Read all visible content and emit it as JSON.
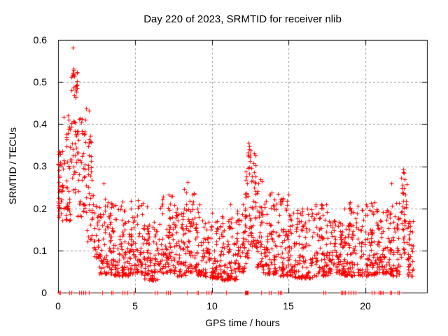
{
  "chart_data": {
    "type": "scatter",
    "title": "Day 220 of 2023, SRMTID for receiver nlib",
    "xlabel": "GPS time / hours",
    "ylabel": "SRMTID / TECUs",
    "xlim": [
      0,
      24
    ],
    "ylim": [
      0,
      0.6
    ],
    "xticks": [
      0,
      5,
      10,
      15,
      20
    ],
    "yticks": [
      0,
      0.1,
      0.2,
      0.3,
      0.4,
      0.5,
      0.6
    ],
    "xtick_labels": [
      "0",
      "5",
      "10",
      "15",
      "20"
    ],
    "ytick_labels": [
      "0",
      "0.1",
      "0.2",
      "0.3",
      "0.4",
      "0.5",
      "0.6"
    ],
    "grid": true,
    "grid_color": "#9c9c9c",
    "border_color": "#000000",
    "background_color": "#ffffff",
    "marker": {
      "shape": "plus",
      "color": "#ff0000",
      "size": 7
    },
    "legend": "none",
    "seed": 20230813,
    "outlier_points": [
      [
        0.96,
        0.581
      ],
      [
        0.99,
        0.532
      ],
      [
        1.02,
        0.528
      ],
      [
        0.97,
        0.522
      ],
      [
        1.05,
        0.514
      ],
      [
        1.0,
        0.487
      ],
      [
        1.03,
        0.468
      ],
      [
        1.99,
        0.432
      ],
      [
        1.38,
        0.412
      ],
      [
        1.52,
        0.404
      ],
      [
        0.62,
        0.42
      ],
      [
        0.7,
        0.41
      ],
      [
        2.95,
        0.26
      ],
      [
        3.05,
        0.222
      ],
      [
        4.2,
        0.216
      ],
      [
        5.2,
        0.22
      ],
      [
        5.8,
        0.205
      ],
      [
        7.2,
        0.232
      ],
      [
        8.2,
        0.246
      ],
      [
        8.42,
        0.262
      ],
      [
        9.2,
        0.21
      ],
      [
        10.0,
        0.19
      ],
      [
        11.2,
        0.21
      ],
      [
        13.9,
        0.237
      ],
      [
        14.5,
        0.222
      ],
      [
        15.0,
        0.232
      ],
      [
        16.2,
        0.2
      ],
      [
        17.45,
        0.21
      ],
      [
        19.0,
        0.215
      ],
      [
        20.35,
        0.212
      ],
      [
        20.6,
        0.215
      ],
      [
        21.7,
        0.26
      ],
      [
        12.38,
        0.356
      ],
      [
        12.42,
        0.348
      ],
      [
        12.45,
        0.34
      ],
      [
        12.33,
        0.332
      ],
      [
        12.5,
        0.328
      ],
      [
        12.75,
        0.33
      ],
      [
        22.45,
        0.292
      ],
      [
        22.5,
        0.284
      ],
      [
        22.55,
        0.27
      ],
      [
        22.42,
        0.256
      ],
      [
        22.48,
        0.248
      ]
    ],
    "zero_marks": [
      0.05,
      0.12,
      0.75,
      0.87,
      1.38,
      1.5,
      1.64,
      1.78,
      1.99,
      2.85,
      3.45,
      3.57,
      4.19,
      4.34,
      4.49,
      4.92,
      6.3,
      6.45,
      7.0,
      7.15,
      7.3,
      8.36,
      9.0,
      9.1,
      9.65,
      9.8,
      9.96,
      10.93,
      12.18,
      12.22,
      12.26,
      12.3,
      12.34,
      13.2,
      13.7,
      13.85,
      14.3,
      14.42,
      14.55,
      17.25,
      17.4,
      18.42,
      18.5,
      18.58,
      18.66,
      18.9,
      19.05,
      19.2,
      19.35,
      20.4,
      20.6,
      20.85,
      20.95,
      21.05,
      21.15,
      21.6,
      21.7,
      22.1,
      22.2
    ],
    "density_bands": [
      [
        0.0,
        0.35,
        45,
        0.17,
        0.345,
        1.0
      ],
      [
        0.35,
        0.85,
        40,
        0.17,
        0.43,
        1.2
      ],
      [
        0.85,
        1.25,
        45,
        0.22,
        0.54,
        1.1
      ],
      [
        1.25,
        1.85,
        45,
        0.18,
        0.44,
        1.3
      ],
      [
        1.85,
        2.3,
        35,
        0.12,
        0.38,
        1.5
      ],
      [
        2.3,
        2.7,
        30,
        0.08,
        0.22,
        1.3
      ],
      [
        2.7,
        3.6,
        80,
        0.045,
        0.22,
        2.0
      ],
      [
        3.6,
        4.6,
        85,
        0.04,
        0.21,
        2.0
      ],
      [
        4.6,
        5.6,
        85,
        0.045,
        0.22,
        2.2
      ],
      [
        5.6,
        6.6,
        85,
        0.03,
        0.17,
        1.8
      ],
      [
        6.6,
        7.6,
        85,
        0.045,
        0.23,
        2.0
      ],
      [
        7.6,
        8.3,
        60,
        0.04,
        0.2,
        1.9
      ],
      [
        8.3,
        8.9,
        55,
        0.05,
        0.26,
        1.8
      ],
      [
        8.9,
        9.6,
        60,
        0.04,
        0.21,
        1.9
      ],
      [
        9.6,
        10.6,
        85,
        0.035,
        0.17,
        1.8
      ],
      [
        10.6,
        11.6,
        85,
        0.03,
        0.19,
        1.9
      ],
      [
        11.6,
        12.15,
        50,
        0.05,
        0.22,
        1.7
      ],
      [
        12.15,
        12.55,
        45,
        0.07,
        0.345,
        1.0
      ],
      [
        12.55,
        12.9,
        35,
        0.1,
        0.33,
        1.3
      ],
      [
        12.9,
        13.3,
        40,
        0.06,
        0.27,
        1.6
      ],
      [
        13.3,
        14.3,
        85,
        0.045,
        0.24,
        2.0
      ],
      [
        14.3,
        15.3,
        85,
        0.04,
        0.23,
        2.0
      ],
      [
        15.3,
        16.6,
        100,
        0.035,
        0.2,
        1.9
      ],
      [
        16.6,
        17.6,
        85,
        0.04,
        0.21,
        1.9
      ],
      [
        17.6,
        18.6,
        85,
        0.045,
        0.18,
        1.9
      ],
      [
        18.6,
        19.6,
        85,
        0.04,
        0.22,
        1.9
      ],
      [
        19.6,
        20.6,
        85,
        0.04,
        0.21,
        1.9
      ],
      [
        20.6,
        21.6,
        85,
        0.045,
        0.2,
        1.9
      ],
      [
        21.6,
        22.25,
        55,
        0.04,
        0.22,
        1.9
      ],
      [
        22.3,
        22.7,
        35,
        0.08,
        0.29,
        1.2
      ],
      [
        22.7,
        23.1,
        35,
        0.04,
        0.17,
        1.8
      ]
    ]
  }
}
